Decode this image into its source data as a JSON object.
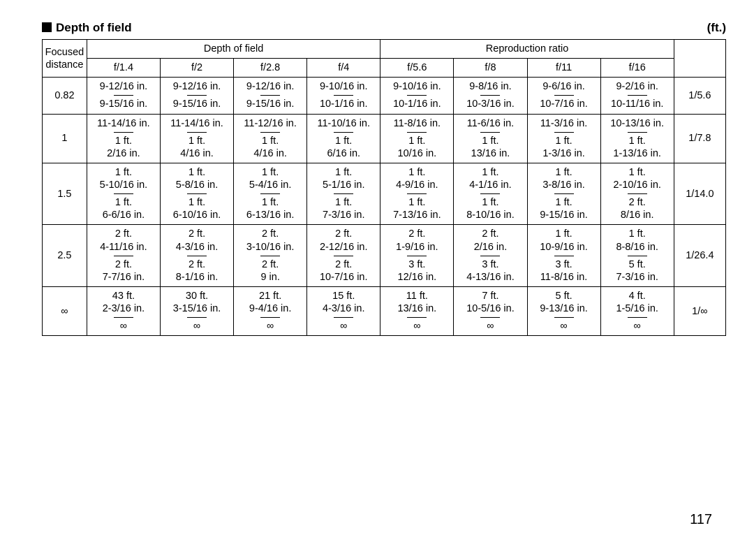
{
  "title": "Depth of field",
  "unit": "(ft.)",
  "pagenum": "117",
  "headers": {
    "fd": "Focused distance",
    "dof": "Depth of field",
    "rr": "Reproduction ratio"
  },
  "apertures": [
    "f/1.4",
    "f/2",
    "f/2.8",
    "f/4",
    "f/5.6",
    "f/8",
    "f/11",
    "f/16"
  ],
  "rows": [
    {
      "fd": "0.82",
      "rr": "1/5.6",
      "cells": [
        {
          "near": [
            "9-12/16 in."
          ],
          "far": [
            "9-15/16 in."
          ]
        },
        {
          "near": [
            "9-12/16 in."
          ],
          "far": [
            "9-15/16 in."
          ]
        },
        {
          "near": [
            "9-12/16 in."
          ],
          "far": [
            "9-15/16 in."
          ]
        },
        {
          "near": [
            "9-10/16 in."
          ],
          "far": [
            "10-1/16 in."
          ]
        },
        {
          "near": [
            "9-10/16 in."
          ],
          "far": [
            "10-1/16 in."
          ]
        },
        {
          "near": [
            "9-8/16 in."
          ],
          "far": [
            "10-3/16 in."
          ]
        },
        {
          "near": [
            "9-6/16 in."
          ],
          "far": [
            "10-7/16 in."
          ]
        },
        {
          "near": [
            "9-2/16 in."
          ],
          "far": [
            "10-11/16 in."
          ]
        }
      ]
    },
    {
      "fd": "1",
      "rr": "1/7.8",
      "cells": [
        {
          "near": [
            "11-14/16 in."
          ],
          "far": [
            "1 ft.",
            "2/16 in."
          ]
        },
        {
          "near": [
            "11-14/16 in."
          ],
          "far": [
            "1 ft.",
            "4/16 in."
          ]
        },
        {
          "near": [
            "11-12/16 in."
          ],
          "far": [
            "1 ft.",
            "4/16 in."
          ]
        },
        {
          "near": [
            "11-10/16 in."
          ],
          "far": [
            "1 ft.",
            "6/16 in."
          ]
        },
        {
          "near": [
            "11-8/16 in."
          ],
          "far": [
            "1 ft.",
            "10/16 in."
          ]
        },
        {
          "near": [
            "11-6/16 in."
          ],
          "far": [
            "1 ft.",
            "13/16 in."
          ]
        },
        {
          "near": [
            "11-3/16 in."
          ],
          "far": [
            "1 ft.",
            "1-3/16 in."
          ]
        },
        {
          "near": [
            "10-13/16 in."
          ],
          "far": [
            "1 ft.",
            "1-13/16 in."
          ]
        }
      ]
    },
    {
      "fd": "1.5",
      "rr": "1/14.0",
      "cells": [
        {
          "near": [
            "1 ft.",
            "5-10/16 in."
          ],
          "far": [
            "1 ft.",
            "6-6/16 in."
          ]
        },
        {
          "near": [
            "1 ft.",
            "5-8/16 in."
          ],
          "far": [
            "1 ft.",
            "6-10/16 in."
          ]
        },
        {
          "near": [
            "1 ft.",
            "5-4/16 in."
          ],
          "far": [
            "1 ft.",
            "6-13/16 in."
          ]
        },
        {
          "near": [
            "1 ft.",
            "5-1/16 in."
          ],
          "far": [
            "1 ft.",
            "7-3/16 in."
          ]
        },
        {
          "near": [
            "1 ft.",
            "4-9/16 in."
          ],
          "far": [
            "1 ft.",
            "7-13/16 in."
          ]
        },
        {
          "near": [
            "1 ft.",
            "4-1/16 in."
          ],
          "far": [
            "1 ft.",
            "8-10/16 in."
          ]
        },
        {
          "near": [
            "1 ft.",
            "3-8/16 in."
          ],
          "far": [
            "1 ft.",
            "9-15/16 in."
          ]
        },
        {
          "near": [
            "1 ft.",
            "2-10/16 in."
          ],
          "far": [
            "2 ft.",
            "8/16 in."
          ]
        }
      ]
    },
    {
      "fd": "2.5",
      "rr": "1/26.4",
      "cells": [
        {
          "near": [
            "2 ft.",
            "4-11/16 in."
          ],
          "far": [
            "2 ft.",
            "7-7/16 in."
          ]
        },
        {
          "near": [
            "2 ft.",
            "4-3/16 in."
          ],
          "far": [
            "2 ft.",
            "8-1/16 in."
          ]
        },
        {
          "near": [
            "2 ft.",
            "3-10/16 in."
          ],
          "far": [
            "2 ft.",
            "9 in."
          ]
        },
        {
          "near": [
            "2 ft.",
            "2-12/16 in."
          ],
          "far": [
            "2 ft.",
            "10-7/16 in."
          ]
        },
        {
          "near": [
            "2 ft.",
            "1-9/16 in."
          ],
          "far": [
            "3 ft.",
            "12/16 in."
          ]
        },
        {
          "near": [
            "2 ft.",
            "2/16 in."
          ],
          "far": [
            "3 ft.",
            "4-13/16 in."
          ]
        },
        {
          "near": [
            "1 ft.",
            "10-9/16 in."
          ],
          "far": [
            "3 ft.",
            "11-8/16 in."
          ]
        },
        {
          "near": [
            "1 ft.",
            "8-8/16 in."
          ],
          "far": [
            "5 ft.",
            "7-3/16 in."
          ]
        }
      ]
    },
    {
      "fd": "∞",
      "rr": "1/∞",
      "cells": [
        {
          "near": [
            "43 ft.",
            "2-3/16 in."
          ],
          "far": [
            "∞"
          ]
        },
        {
          "near": [
            "30 ft.",
            "3-15/16 in."
          ],
          "far": [
            "∞"
          ]
        },
        {
          "near": [
            "21 ft.",
            "9-4/16 in."
          ],
          "far": [
            "∞"
          ]
        },
        {
          "near": [
            "15 ft.",
            "4-3/16 in."
          ],
          "far": [
            "∞"
          ]
        },
        {
          "near": [
            "11 ft.",
            "13/16 in."
          ],
          "far": [
            "∞"
          ]
        },
        {
          "near": [
            "7 ft.",
            "10-5/16 in."
          ],
          "far": [
            "∞"
          ]
        },
        {
          "near": [
            "5 ft.",
            "9-13/16 in."
          ],
          "far": [
            "∞"
          ]
        },
        {
          "near": [
            "4 ft.",
            "1-5/16 in."
          ],
          "far": [
            "∞"
          ]
        }
      ]
    }
  ]
}
